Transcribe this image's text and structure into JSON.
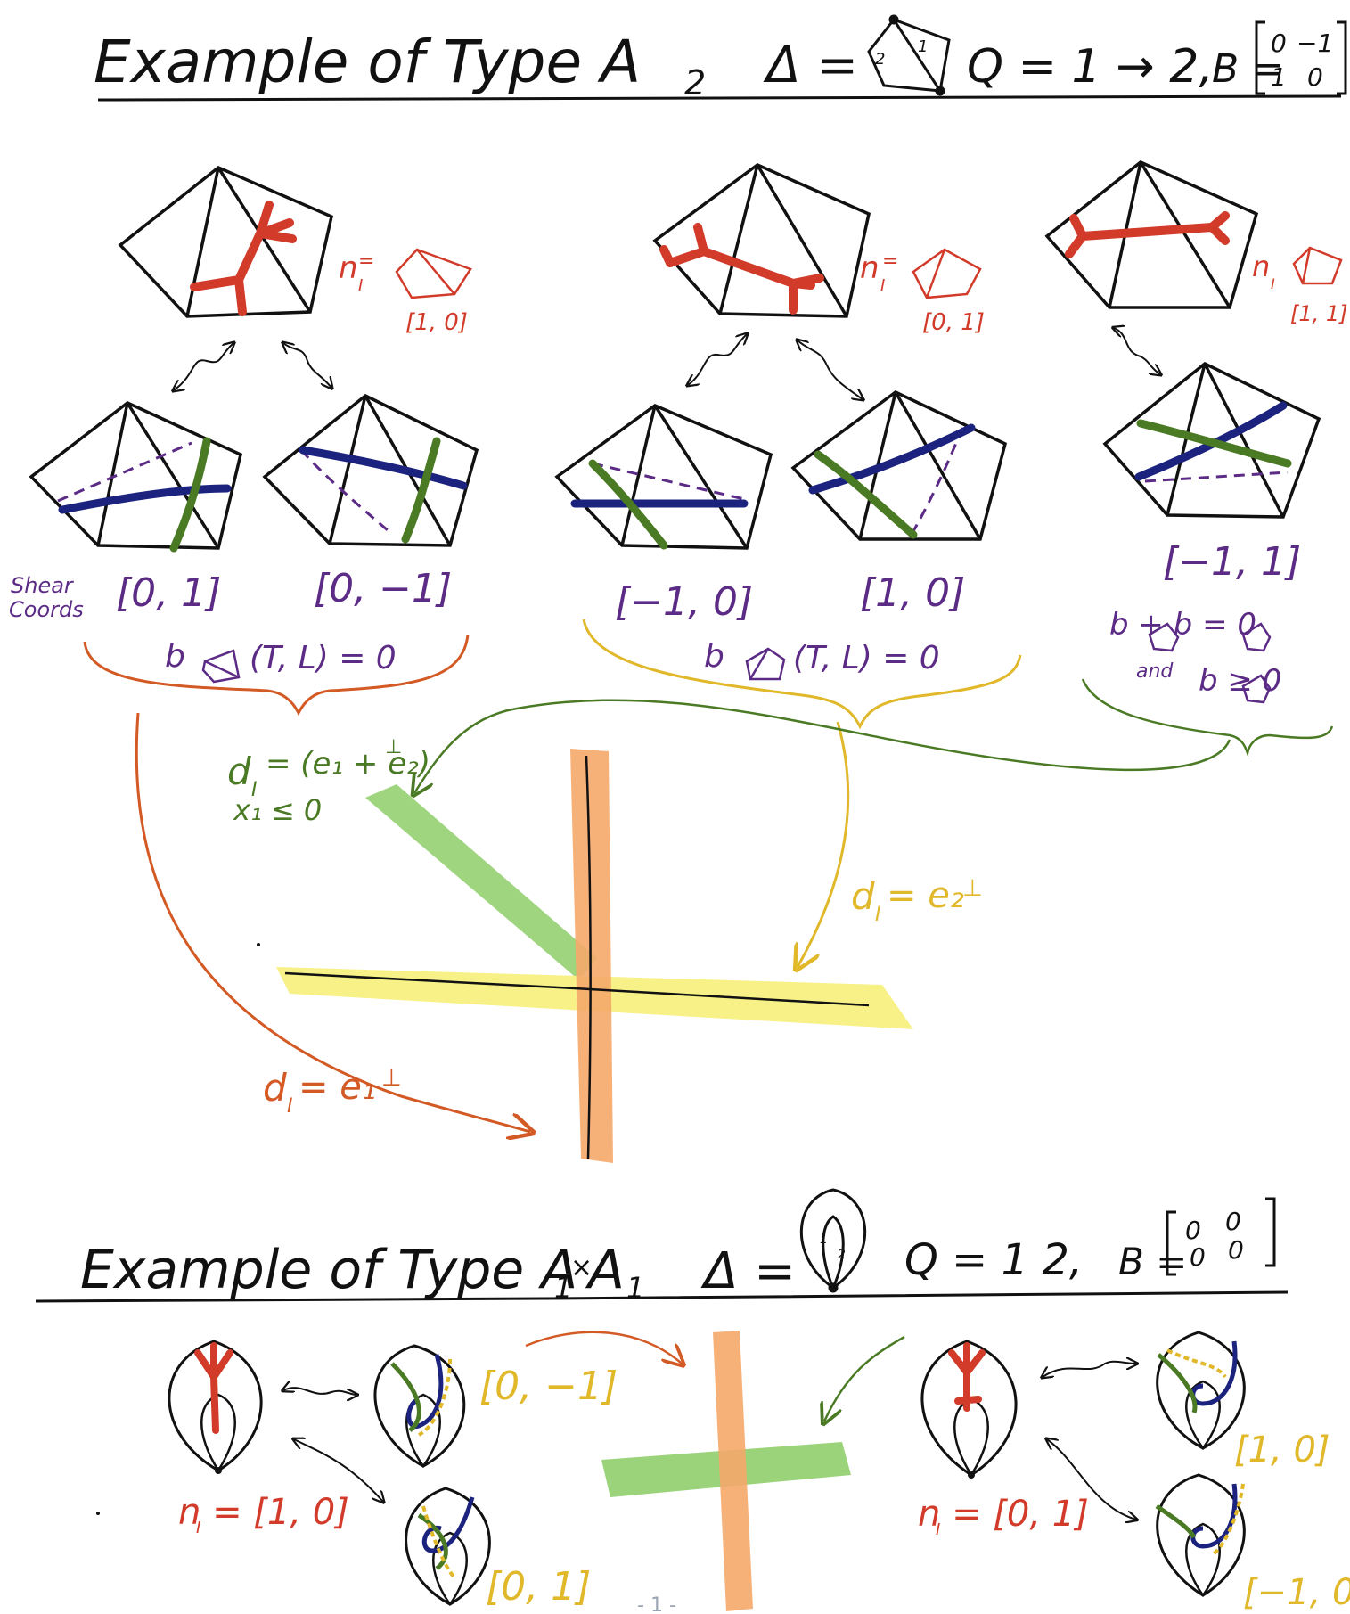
{
  "title1": {
    "prefix": "Example of Type A",
    "sub": "2",
    "delta": "Δ =",
    "tri_labels": [
      "2",
      "1"
    ],
    "quiver": "Q = 1 → 2,",
    "bmat_label": "B =",
    "bmat": [
      [
        "0",
        "−1"
      ],
      [
        "1",
        "0"
      ]
    ]
  },
  "a2": {
    "n_labels": [
      {
        "text": "n",
        "sub": "I",
        "vec": "[1, 0]"
      },
      {
        "text": "n",
        "sub": "I",
        "vec": "[0, 1]"
      },
      {
        "text": "n",
        "sub": "I",
        "vec": "[1, 1]"
      }
    ],
    "shear_label": [
      "Shear",
      "Coords"
    ],
    "shear_coords": [
      "[0, 1]",
      "[0, −1]",
      "[−1, 0]",
      "[1, 0]",
      "[−1, 1]"
    ],
    "conditions": {
      "c1": "b (T, L) = 0",
      "c2": "b (T, L) = 0",
      "c3_line1": "b + b = 0",
      "c3_and": "and",
      "c3_line2": "b ≥ 0"
    },
    "walls": {
      "green": [
        "d",
        "I",
        " = (e₁ + e₂)",
        "⊥",
        "x₁ ≤ 0"
      ],
      "yellow": [
        "d",
        "I",
        " = e₂",
        "⊥"
      ],
      "orange": [
        "d",
        "I",
        " = e₁",
        "⊥"
      ]
    }
  },
  "title2": {
    "prefix": "Example of Type A",
    "sub1": "1",
    "times": "×",
    "prefix2": "A",
    "sub2": "1",
    "delta": "Δ =",
    "mono_labels": [
      "1",
      "2"
    ],
    "quiver": "Q = 1   2,",
    "bmat_label": "B =",
    "bmat": [
      [
        "0",
        "0"
      ],
      [
        "0",
        "0"
      ]
    ]
  },
  "a1a1": {
    "n_left": "n   = [1, 0]",
    "n_left_sub": "I",
    "n_right": "n   = [0, 1]",
    "n_right_sub": "I",
    "coords": [
      "[0, −1]",
      "[0, 1]",
      "[1, 0]",
      "[−1, 0]"
    ]
  },
  "footer": {
    "page": "- 1 -"
  },
  "colors": {
    "red": "#d23a2a",
    "navy": "#1c237e",
    "green": "#4a7a24",
    "purple": "#5b2b86",
    "orange": "#e07a2e",
    "yellow": "#e6c02c",
    "orange_band": "#f5a96a",
    "yellow_band": "#f6f07a",
    "green_band": "#8fce6a"
  }
}
